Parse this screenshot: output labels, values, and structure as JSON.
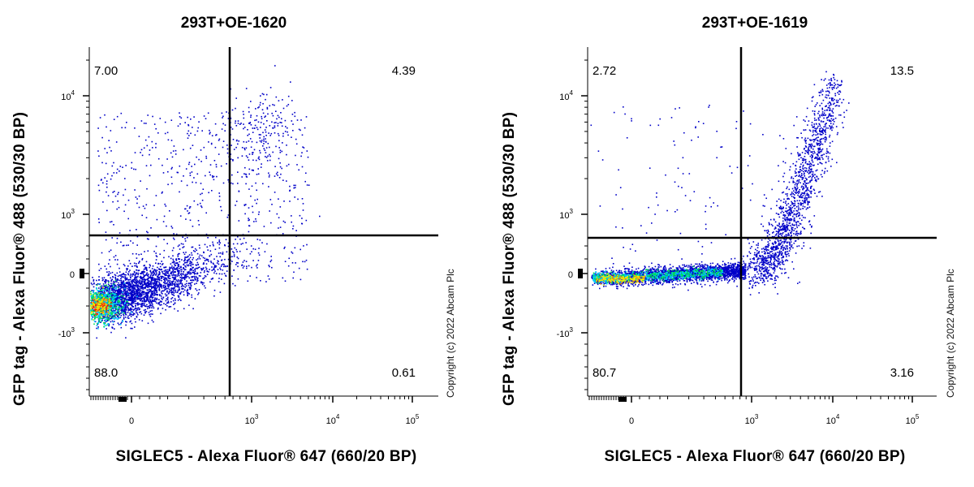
{
  "chart_data": [
    {
      "type": "scatter",
      "title": "293T+OE-1620",
      "xlabel": "SIGLEC5 - Alexa Fluor® 647 (660/20 BP)",
      "ylabel": "GFP tag - Alexa Fluor® 488 (530/30 BP)",
      "copyright": "Copyright (c) 2022 Abcam Plc",
      "xscale": "biexponential",
      "yscale": "biexponential",
      "xticks": [
        "0",
        "10^3",
        "10^4",
        "10^5"
      ],
      "yticks": [
        "-10^3",
        "0",
        "10^3",
        "10^4"
      ],
      "gate": {
        "x": 700,
        "y": 600
      },
      "quadrants": {
        "upper_left": "7.00",
        "upper_right": "4.39",
        "lower_left": "88.0",
        "lower_right": "0.61"
      },
      "colormap": [
        "#0000c8",
        "#00c8ff",
        "#00e050",
        "#f0f000",
        "#ff8c00",
        "#ff0000"
      ]
    },
    {
      "type": "scatter",
      "title": "293T+OE-1619",
      "xlabel": "SIGLEC5 - Alexa Fluor® 647 (660/20 BP)",
      "ylabel": "GFP tag - Alexa Fluor® 488 (530/30 BP)",
      "copyright": "Copyright (c) 2022 Abcam Plc",
      "xscale": "biexponential",
      "yscale": "biexponential",
      "xticks": [
        "0",
        "10^3",
        "10^4",
        "10^5"
      ],
      "yticks": [
        "-10^3",
        "0",
        "10^3",
        "10^4"
      ],
      "gate": {
        "x": 1000,
        "y": 600
      },
      "quadrants": {
        "upper_left": "2.72",
        "upper_right": "13.5",
        "lower_left": "80.7",
        "lower_right": "3.16"
      },
      "colormap": [
        "#0000c8",
        "#00c8ff",
        "#00e050",
        "#f0f000",
        "#ff8c00",
        "#ff0000"
      ]
    }
  ]
}
